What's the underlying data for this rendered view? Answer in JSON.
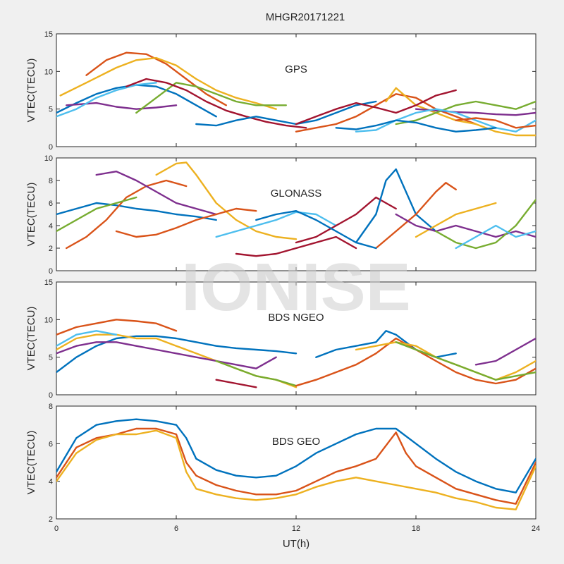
{
  "figure_title": "MHGR20171221",
  "watermark": "IONISE",
  "xlabel": "UT(h)",
  "xticks": [
    0,
    6,
    12,
    18,
    24
  ],
  "colors": [
    "#0072bd",
    "#d95319",
    "#edb120",
    "#7e2f8e",
    "#77ac30",
    "#4dbeee",
    "#a2142f"
  ],
  "chart_data": [
    {
      "type": "line",
      "panel_label": "GPS",
      "ylabel": "VTEC(TECU)",
      "xlim": [
        0,
        24
      ],
      "ylim": [
        0,
        15
      ],
      "yticks": [
        0,
        5,
        10,
        15
      ],
      "series": [
        {
          "x": [
            0,
            1,
            2,
            3,
            4,
            5,
            6,
            7,
            8
          ],
          "y": [
            4.5,
            5.8,
            7.0,
            7.8,
            8.2,
            8.0,
            7.0,
            5.5,
            4.0
          ]
        },
        {
          "x": [
            1.5,
            2.5,
            3.5,
            4.5,
            5.5,
            6.5,
            7.5,
            8.5
          ],
          "y": [
            9.5,
            11.5,
            12.5,
            12.3,
            11.0,
            9.0,
            7.0,
            5.5
          ]
        },
        {
          "x": [
            0.2,
            1.5,
            3,
            4,
            5,
            6,
            7,
            8,
            9,
            10,
            11
          ],
          "y": [
            6.8,
            8.5,
            10.5,
            11.5,
            11.8,
            10.8,
            9.0,
            7.5,
            6.5,
            5.8,
            5.0
          ]
        },
        {
          "x": [
            0.5,
            2,
            3,
            4,
            5,
            6
          ],
          "y": [
            5.5,
            5.8,
            5.3,
            5.0,
            5.2,
            5.5
          ]
        },
        {
          "x": [
            4,
            5,
            6,
            7,
            8,
            9,
            10,
            11.5
          ],
          "y": [
            4.5,
            6.5,
            8.5,
            8.0,
            7.0,
            6.0,
            5.5,
            5.5
          ]
        },
        {
          "x": [
            0,
            1,
            2,
            3,
            4,
            5
          ],
          "y": [
            4.0,
            5.0,
            6.5,
            7.5,
            8.2,
            8.5
          ]
        },
        {
          "x": [
            3.5,
            4.5,
            5.5,
            6.5,
            7.5,
            8.5,
            9.5,
            10.5,
            11.5,
            12.5
          ],
          "y": [
            8.0,
            9.0,
            8.5,
            7.5,
            6.0,
            4.8,
            4.0,
            3.3,
            2.8,
            2.5
          ]
        },
        {
          "x": [
            7,
            8,
            9,
            10,
            11,
            12,
            13,
            14,
            15,
            16
          ],
          "y": [
            3.0,
            2.8,
            3.5,
            4.0,
            3.5,
            3.0,
            3.5,
            4.5,
            5.5,
            6.0
          ]
        },
        {
          "x": [
            12,
            13,
            14,
            15,
            16,
            17,
            18,
            19,
            20,
            21
          ],
          "y": [
            2.0,
            2.5,
            3.0,
            4.0,
            5.5,
            7.0,
            6.5,
            5.0,
            4.0,
            3.0
          ]
        },
        {
          "x": [
            16.5,
            17,
            18,
            19,
            20,
            21,
            22,
            23,
            24
          ],
          "y": [
            6.0,
            7.8,
            5.5,
            4.5,
            3.5,
            3.0,
            2.0,
            1.5,
            1.5
          ]
        },
        {
          "x": [
            18,
            19,
            20,
            21,
            22,
            23,
            24
          ],
          "y": [
            5.0,
            4.8,
            4.6,
            4.5,
            4.3,
            4.2,
            4.5
          ]
        },
        {
          "x": [
            17,
            18,
            19,
            20,
            21,
            22,
            23,
            24
          ],
          "y": [
            3.0,
            3.5,
            4.5,
            5.5,
            6.0,
            5.5,
            5.0,
            6.0
          ]
        },
        {
          "x": [
            15,
            16,
            17,
            18,
            19,
            20,
            21,
            22,
            23,
            24
          ],
          "y": [
            2.0,
            2.2,
            3.5,
            4.5,
            5.0,
            4.5,
            3.5,
            2.5,
            2.0,
            3.5
          ]
        },
        {
          "x": [
            12,
            13,
            14,
            15,
            16,
            17,
            18,
            19,
            20
          ],
          "y": [
            3.0,
            4.0,
            5.0,
            5.8,
            5.2,
            4.5,
            5.5,
            6.8,
            7.5
          ]
        },
        {
          "x": [
            14,
            15,
            16,
            17,
            18,
            19,
            20,
            21,
            22
          ],
          "y": [
            2.5,
            2.3,
            2.8,
            3.5,
            3.2,
            2.5,
            2.0,
            2.2,
            2.5
          ]
        },
        {
          "x": [
            20,
            21,
            22,
            23,
            24
          ],
          "y": [
            3.5,
            3.8,
            3.5,
            2.5,
            2.8
          ]
        }
      ]
    },
    {
      "type": "line",
      "panel_label": "GLONASS",
      "ylabel": "VTEC(TECU)",
      "xlim": [
        0,
        24
      ],
      "ylim": [
        0,
        10
      ],
      "yticks": [
        0,
        2,
        4,
        6,
        8,
        10
      ],
      "series": [
        {
          "x": [
            0,
            1,
            2,
            3,
            4,
            5,
            6,
            7,
            8
          ],
          "y": [
            5.0,
            5.5,
            6.0,
            5.8,
            5.5,
            5.3,
            5.0,
            4.8,
            4.5
          ]
        },
        {
          "x": [
            0.5,
            1.5,
            2.5,
            3.5,
            4.5,
            5.5,
            6.5
          ],
          "y": [
            2.0,
            3.0,
            4.5,
            6.5,
            7.5,
            8.0,
            7.5
          ]
        },
        {
          "x": [
            5,
            6,
            6.5,
            7,
            8,
            9,
            10,
            11,
            12
          ],
          "y": [
            8.5,
            9.5,
            9.6,
            8.5,
            6.0,
            4.5,
            3.5,
            3.0,
            2.8
          ]
        },
        {
          "x": [
            2,
            3,
            4,
            5,
            6,
            7,
            8
          ],
          "y": [
            8.5,
            8.8,
            8.0,
            7.0,
            6.0,
            5.5,
            5.0
          ]
        },
        {
          "x": [
            0,
            1,
            2,
            3,
            4
          ],
          "y": [
            3.5,
            4.5,
            5.5,
            6.0,
            6.5
          ]
        },
        {
          "x": [
            8,
            9,
            10,
            11,
            12,
            13,
            14
          ],
          "y": [
            3.0,
            3.5,
            4.0,
            4.5,
            5.2,
            5.0,
            4.0
          ]
        },
        {
          "x": [
            12,
            13,
            14,
            15,
            16,
            17
          ],
          "y": [
            2.5,
            3.0,
            4.0,
            5.0,
            6.5,
            5.5
          ]
        },
        {
          "x": [
            15,
            16,
            16.5,
            17,
            18,
            19
          ],
          "y": [
            2.5,
            5.0,
            8.0,
            9.0,
            5.0,
            3.5
          ]
        },
        {
          "x": [
            16,
            17,
            18,
            19,
            19.5,
            20
          ],
          "y": [
            2.0,
            3.5,
            5.0,
            7.0,
            7.8,
            7.2
          ]
        },
        {
          "x": [
            18,
            19,
            20,
            21,
            22
          ],
          "y": [
            3.0,
            4.0,
            5.0,
            5.5,
            6.0
          ]
        },
        {
          "x": [
            17,
            18,
            19,
            20,
            21,
            22,
            23,
            24
          ],
          "y": [
            5.0,
            4.0,
            3.5,
            4.0,
            3.5,
            3.0,
            3.5,
            3.0
          ]
        },
        {
          "x": [
            19,
            20,
            21,
            22,
            23,
            24
          ],
          "y": [
            3.5,
            2.5,
            2.0,
            2.5,
            4.0,
            6.3
          ]
        },
        {
          "x": [
            20,
            21,
            22,
            23,
            24
          ],
          "y": [
            2.0,
            3.0,
            4.0,
            3.0,
            3.5
          ]
        },
        {
          "x": [
            9,
            10,
            11,
            12,
            13,
            14,
            15
          ],
          "y": [
            1.5,
            1.3,
            1.5,
            2.0,
            2.5,
            3.0,
            2.0
          ]
        },
        {
          "x": [
            10,
            11,
            12,
            13,
            14,
            15,
            16
          ],
          "y": [
            4.5,
            5.0,
            5.3,
            4.5,
            3.5,
            2.5,
            2.0
          ]
        },
        {
          "x": [
            3,
            4,
            5,
            6,
            7,
            8,
            9,
            10
          ],
          "y": [
            3.5,
            3.0,
            3.2,
            3.8,
            4.5,
            5.0,
            5.5,
            5.3
          ]
        }
      ]
    },
    {
      "type": "line",
      "panel_label": "BDS NGEO",
      "ylabel": "VTEC(TECU)",
      "xlim": [
        0,
        24
      ],
      "ylim": [
        0,
        15
      ],
      "yticks": [
        0,
        5,
        10,
        15
      ],
      "series": [
        {
          "x": [
            0,
            1,
            2,
            3,
            4,
            5,
            6,
            7,
            8,
            9,
            10,
            11,
            12
          ],
          "y": [
            3.0,
            5.0,
            6.5,
            7.5,
            7.8,
            7.8,
            7.5,
            7.0,
            6.5,
            6.2,
            6.0,
            5.8,
            5.5
          ]
        },
        {
          "x": [
            0,
            1,
            2,
            3,
            4,
            5,
            6
          ],
          "y": [
            8.0,
            9.0,
            9.5,
            10.0,
            9.8,
            9.5,
            8.5
          ]
        },
        {
          "x": [
            0,
            1,
            2,
            3,
            4,
            5,
            6,
            7,
            8,
            9,
            10,
            11,
            12
          ],
          "y": [
            6.0,
            7.5,
            8.0,
            8.0,
            7.5,
            7.5,
            6.5,
            5.5,
            4.5,
            3.5,
            2.5,
            2.0,
            1.0
          ]
        },
        {
          "x": [
            0,
            1,
            2,
            3,
            4,
            5,
            6,
            7,
            8,
            9,
            10,
            11
          ],
          "y": [
            5.5,
            6.5,
            7.0,
            7.0,
            6.5,
            6.0,
            5.5,
            5.0,
            4.5,
            4.0,
            3.5,
            5.0
          ]
        },
        {
          "x": [
            8,
            9,
            10,
            11,
            12
          ],
          "y": [
            4.5,
            3.5,
            2.5,
            2.0,
            1.2
          ]
        },
        {
          "x": [
            0,
            1,
            2,
            3
          ],
          "y": [
            6.5,
            8.0,
            8.5,
            8.0
          ]
        },
        {
          "x": [
            8,
            9,
            10
          ],
          "y": [
            2.0,
            1.5,
            1.0
          ]
        },
        {
          "x": [
            13,
            14,
            15,
            16,
            16.5,
            17,
            18,
            19,
            20
          ],
          "y": [
            5.0,
            6.0,
            6.5,
            7.0,
            8.5,
            8.0,
            6.0,
            5.0,
            5.5
          ]
        },
        {
          "x": [
            12,
            13,
            14,
            15,
            16,
            17,
            18,
            19,
            20,
            21,
            22,
            23,
            24
          ],
          "y": [
            1.2,
            2.0,
            3.0,
            4.0,
            5.5,
            7.5,
            6.0,
            4.5,
            3.0,
            2.0,
            1.5,
            2.0,
            3.5
          ]
        },
        {
          "x": [
            15,
            16,
            17,
            18,
            19,
            20,
            21,
            22,
            23,
            24
          ],
          "y": [
            6.0,
            6.5,
            7.0,
            6.5,
            5.0,
            4.0,
            3.0,
            2.0,
            3.0,
            4.5
          ]
        },
        {
          "x": [
            21,
            22,
            23,
            24
          ],
          "y": [
            4.0,
            4.5,
            6.0,
            7.5
          ]
        },
        {
          "x": [
            17,
            18,
            19,
            20,
            21,
            22,
            23,
            24
          ],
          "y": [
            7.0,
            6.0,
            5.0,
            4.0,
            3.0,
            2.0,
            2.5,
            3.0
          ]
        }
      ]
    },
    {
      "type": "line",
      "panel_label": "BDS GEO",
      "ylabel": "VTEC(TECU)",
      "xlim": [
        0,
        24
      ],
      "ylim": [
        2,
        8
      ],
      "yticks": [
        2,
        4,
        6,
        8
      ],
      "series": [
        {
          "x": [
            0,
            1,
            2,
            3,
            4,
            5,
            6,
            6.5,
            7,
            8,
            9,
            10,
            11,
            12,
            13,
            14,
            15,
            16,
            17,
            18,
            19,
            20,
            21,
            22,
            23,
            24
          ],
          "y": [
            4.5,
            6.3,
            7.0,
            7.2,
            7.3,
            7.2,
            7.0,
            6.3,
            5.2,
            4.6,
            4.3,
            4.2,
            4.3,
            4.8,
            5.5,
            6.0,
            6.5,
            6.8,
            6.8,
            6.0,
            5.2,
            4.5,
            4.0,
            3.6,
            3.4,
            5.2
          ]
        },
        {
          "x": [
            0,
            1,
            2,
            3,
            4,
            5,
            6,
            6.5,
            7,
            8,
            9,
            10,
            11,
            12,
            13,
            14,
            15,
            16,
            17,
            17.5,
            18,
            19,
            20,
            21,
            22,
            23,
            24
          ],
          "y": [
            4.2,
            5.8,
            6.3,
            6.5,
            6.8,
            6.8,
            6.5,
            5.0,
            4.3,
            3.8,
            3.5,
            3.3,
            3.3,
            3.5,
            4.0,
            4.5,
            4.8,
            5.2,
            6.6,
            5.5,
            4.8,
            4.2,
            3.6,
            3.3,
            3.0,
            2.8,
            5.0
          ]
        },
        {
          "x": [
            0,
            1,
            2,
            3,
            4,
            5,
            6,
            6.5,
            7,
            8,
            9,
            10,
            11,
            12,
            13,
            14,
            15,
            16,
            17,
            18,
            19,
            20,
            21,
            22,
            23,
            24
          ],
          "y": [
            4.0,
            5.5,
            6.2,
            6.5,
            6.5,
            6.7,
            6.3,
            4.5,
            3.6,
            3.3,
            3.1,
            3.0,
            3.1,
            3.3,
            3.7,
            4.0,
            4.2,
            4.0,
            3.8,
            3.6,
            3.4,
            3.1,
            2.9,
            2.6,
            2.5,
            4.8
          ]
        }
      ]
    }
  ]
}
